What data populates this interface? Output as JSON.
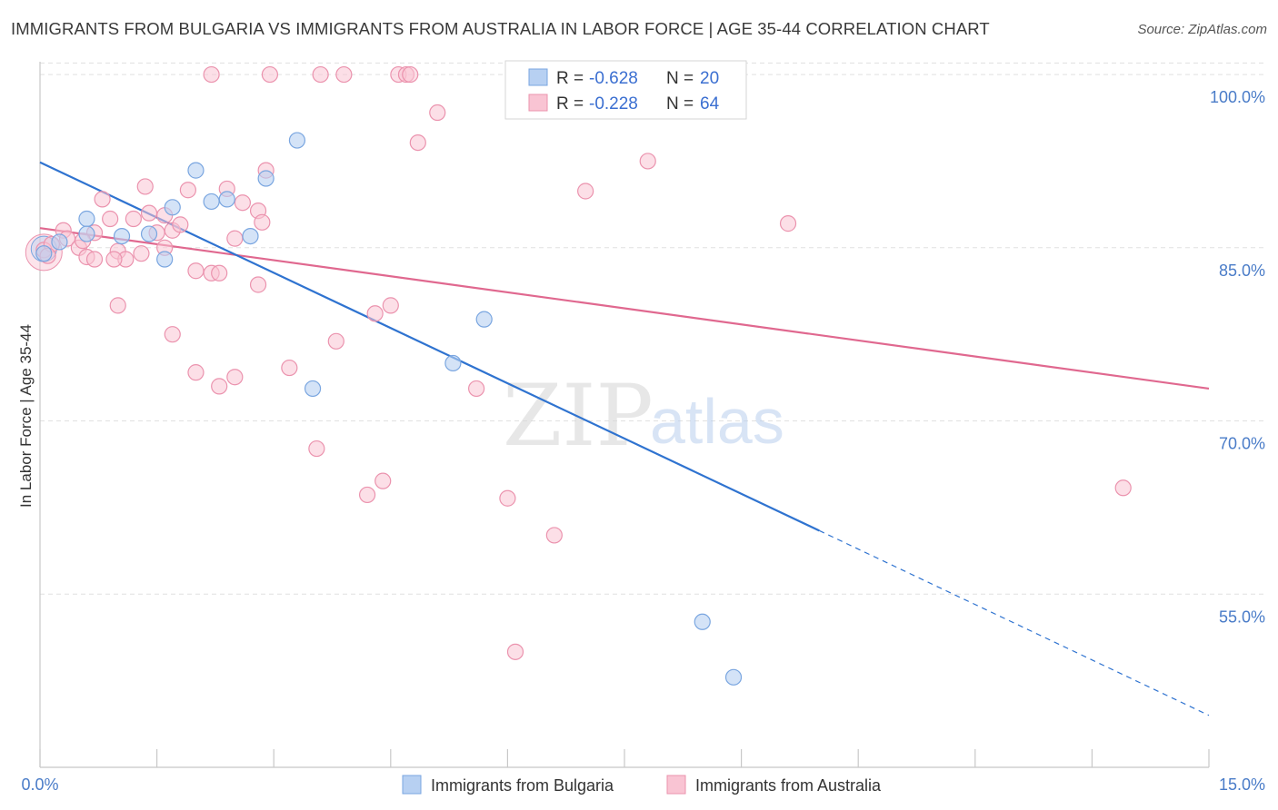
{
  "title": "IMMIGRANTS FROM BULGARIA VS IMMIGRANTS FROM AUSTRALIA IN LABOR FORCE | AGE 35-44 CORRELATION CHART",
  "source": "Source: ZipAtlas.com",
  "watermark": {
    "zip": "ZIP",
    "atlas": "atlas"
  },
  "legend": {
    "r_label": "R =",
    "n_label": "N =",
    "rows": [
      {
        "series": "Immigrants from Bulgaria",
        "r": "-0.628",
        "n": "20"
      },
      {
        "series": "Immigrants from Australia",
        "r": "-0.228",
        "n": "64"
      }
    ]
  },
  "colors": {
    "bulgaria_fill": "#b7d0f2",
    "bulgaria_stroke": "#7aa6e0",
    "bulgaria_line": "#2f73d0",
    "australia_fill": "#f9c4d3",
    "australia_stroke": "#eb93ae",
    "australia_line": "#e0688f",
    "grid": "#e0e0e0",
    "axis_label": "#4a7cc8"
  },
  "chart_data": {
    "type": "scatter",
    "title": "IMMIGRANTS FROM BULGARIA VS IMMIGRANTS FROM AUSTRALIA IN LABOR FORCE | AGE 35-44 CORRELATION CHART",
    "xlabel": "",
    "ylabel": "In Labor Force | Age 35-44",
    "xlim": [
      0,
      15
    ],
    "ylim": [
      40.0,
      101.5
    ],
    "x_tick_labels": [
      "0.0%",
      "15.0%"
    ],
    "y_ticks": [
      55,
      70,
      85,
      100
    ],
    "y_tick_labels": [
      "55.0%",
      "70.0%",
      "85.0%",
      "100.0%"
    ],
    "grid": true,
    "legend_position": "top-center",
    "series": [
      {
        "name": "Immigrants from Bulgaria",
        "r": -0.628,
        "n": 20,
        "points": [
          [
            0.05,
            84.5
          ],
          [
            0.25,
            85.5
          ],
          [
            0.6,
            87.5
          ],
          [
            0.6,
            86.2
          ],
          [
            1.05,
            86.0
          ],
          [
            1.4,
            86.2
          ],
          [
            1.6,
            84.0
          ],
          [
            1.7,
            88.5
          ],
          [
            2.0,
            91.7
          ],
          [
            2.2,
            89.0
          ],
          [
            2.4,
            89.2
          ],
          [
            2.7,
            86.0
          ],
          [
            2.9,
            91.0
          ],
          [
            3.3,
            94.3
          ],
          [
            3.5,
            72.8
          ],
          [
            5.3,
            75.0
          ],
          [
            5.7,
            78.8
          ],
          [
            6.7,
            100.2
          ],
          [
            8.5,
            52.6
          ],
          [
            8.9,
            47.8
          ]
        ],
        "trend": {
          "x": [
            0.0,
            10.0
          ],
          "y": [
            92.4,
            60.5
          ],
          "dashed_extension": {
            "x": [
              10.0,
              15.0
            ],
            "y": [
              60.5,
              44.5
            ]
          }
        }
      },
      {
        "name": "Immigrants from Australia",
        "r": -0.228,
        "n": 64,
        "points": [
          [
            0.05,
            84.8
          ],
          [
            0.15,
            85.3
          ],
          [
            0.3,
            86.5
          ],
          [
            0.35,
            85.8
          ],
          [
            0.5,
            85.0
          ],
          [
            0.6,
            84.2
          ],
          [
            0.7,
            86.3
          ],
          [
            0.8,
            89.2
          ],
          [
            0.9,
            87.5
          ],
          [
            0.7,
            84.0
          ],
          [
            1.0,
            84.7
          ],
          [
            1.1,
            84.0
          ],
          [
            1.0,
            80.0
          ],
          [
            1.2,
            87.5
          ],
          [
            1.3,
            84.5
          ],
          [
            1.35,
            90.3
          ],
          [
            1.4,
            88.0
          ],
          [
            1.5,
            86.3
          ],
          [
            1.6,
            87.8
          ],
          [
            1.6,
            85.0
          ],
          [
            1.7,
            86.5
          ],
          [
            1.8,
            87.0
          ],
          [
            1.9,
            90.0
          ],
          [
            1.7,
            77.5
          ],
          [
            2.0,
            74.2
          ],
          [
            2.0,
            83.0
          ],
          [
            2.2,
            100.0
          ],
          [
            2.2,
            82.8
          ],
          [
            2.3,
            73.0
          ],
          [
            2.3,
            82.8
          ],
          [
            2.4,
            90.1
          ],
          [
            2.5,
            73.8
          ],
          [
            2.5,
            85.8
          ],
          [
            2.6,
            88.9
          ],
          [
            2.8,
            88.2
          ],
          [
            2.8,
            81.8
          ],
          [
            2.85,
            87.2
          ],
          [
            2.9,
            91.7
          ],
          [
            2.95,
            100.0
          ],
          [
            3.2,
            74.6
          ],
          [
            3.55,
            67.6
          ],
          [
            3.6,
            100.0
          ],
          [
            3.8,
            76.9
          ],
          [
            3.9,
            100.0
          ],
          [
            4.2,
            63.6
          ],
          [
            4.3,
            79.3
          ],
          [
            4.4,
            64.8
          ],
          [
            4.5,
            80.0
          ],
          [
            4.6,
            100.0
          ],
          [
            4.7,
            100.0
          ],
          [
            4.75,
            100.0
          ],
          [
            4.85,
            94.1
          ],
          [
            5.1,
            96.7
          ],
          [
            5.6,
            72.8
          ],
          [
            6.0,
            63.3
          ],
          [
            6.1,
            50.0
          ],
          [
            6.6,
            60.1
          ],
          [
            7.0,
            89.9
          ],
          [
            7.8,
            92.5
          ],
          [
            9.6,
            87.1
          ],
          [
            13.9,
            64.2
          ],
          [
            0.1,
            84.3
          ],
          [
            0.55,
            85.6
          ],
          [
            0.95,
            84.0
          ]
        ],
        "trend": {
          "x": [
            0.0,
            15.0
          ],
          "y": [
            86.7,
            72.8
          ]
        }
      }
    ]
  }
}
